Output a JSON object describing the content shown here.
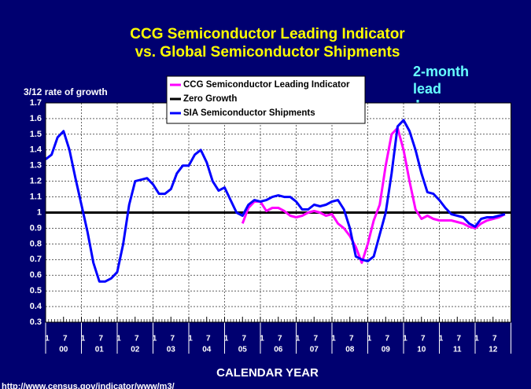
{
  "chart_data": {
    "type": "line",
    "title": [
      "CCG Semiconductor Leading Indicator",
      "vs. Global Semiconductor Shipments"
    ],
    "y_label": "3/12 rate of growth",
    "x_label": "CALENDAR YEAR",
    "annotation": [
      "2-month",
      "lead"
    ],
    "source": "http://www.census.gov/indicator/www/m3/",
    "ylim": [
      0.3,
      1.7
    ],
    "yticks": [
      0.3,
      0.4,
      0.5,
      0.6,
      0.7,
      0.8,
      0.9,
      1,
      1.1,
      1.2,
      1.3,
      1.4,
      1.5,
      1.6,
      1.7
    ],
    "grid": true,
    "legend": "top-center",
    "xticks": [
      {
        "value": "00-01",
        "label": "1"
      },
      {
        "value": "00-07",
        "label": "7"
      },
      {
        "value": "01-01",
        "label": "1"
      },
      {
        "value": "01-07",
        "label": "7"
      },
      {
        "value": "02-01",
        "label": "1"
      },
      {
        "value": "02-07",
        "label": "7"
      },
      {
        "value": "03-01",
        "label": "1"
      },
      {
        "value": "03-07",
        "label": "7"
      },
      {
        "value": "04-01",
        "label": "1"
      },
      {
        "value": "04-07",
        "label": "7"
      },
      {
        "value": "05-01",
        "label": "1"
      },
      {
        "value": "05-07",
        "label": "7"
      },
      {
        "value": "06-01",
        "label": "1"
      },
      {
        "value": "06-07",
        "label": "7"
      },
      {
        "value": "07-01",
        "label": "1"
      },
      {
        "value": "07-07",
        "label": "7"
      },
      {
        "value": "08-01",
        "label": "1"
      },
      {
        "value": "08-07",
        "label": "7"
      },
      {
        "value": "09-01",
        "label": "1"
      },
      {
        "value": "09-07",
        "label": "7"
      },
      {
        "value": "10-01",
        "label": "1"
      },
      {
        "value": "10-07",
        "label": "7"
      },
      {
        "value": "11-01",
        "label": "1"
      },
      {
        "value": "11-07",
        "label": "7"
      },
      {
        "value": "12-01",
        "label": "1"
      },
      {
        "value": "12-07",
        "label": "7"
      }
    ],
    "year_labels": [
      "00",
      "01",
      "02",
      "03",
      "04",
      "05",
      "06",
      "07",
      "08",
      "09",
      "10",
      "11",
      "12"
    ],
    "reference_line": {
      "name": "Zero Growth",
      "value": 1,
      "color": "#000000"
    },
    "x": [
      "00-01",
      "00-03",
      "00-05",
      "00-07",
      "00-09",
      "00-11",
      "01-01",
      "01-03",
      "01-05",
      "01-07",
      "01-09",
      "01-11",
      "02-01",
      "02-03",
      "02-05",
      "02-07",
      "02-09",
      "02-11",
      "03-01",
      "03-03",
      "03-05",
      "03-07",
      "03-09",
      "03-11",
      "04-01",
      "04-03",
      "04-05",
      "04-07",
      "04-09",
      "04-11",
      "05-01",
      "05-03",
      "05-05",
      "05-07",
      "05-09",
      "05-11",
      "06-01",
      "06-03",
      "06-05",
      "06-07",
      "06-09",
      "06-11",
      "07-01",
      "07-03",
      "07-05",
      "07-07",
      "07-09",
      "07-11",
      "08-01",
      "08-03",
      "08-05",
      "08-07",
      "08-09",
      "08-11",
      "09-01",
      "09-03",
      "09-05",
      "09-07",
      "09-09",
      "09-11",
      "10-01",
      "10-03",
      "10-05",
      "10-07",
      "10-09",
      "10-11",
      "11-01",
      "11-03",
      "11-05",
      "11-07",
      "11-09",
      "11-11",
      "12-01",
      "12-03",
      "12-05",
      "12-07",
      "12-09",
      "12-11"
    ],
    "series": [
      {
        "name": "CCG Semiconductor Leading Indicator",
        "color": "#ff00ff",
        "values": [
          null,
          null,
          null,
          null,
          null,
          null,
          null,
          null,
          null,
          null,
          null,
          null,
          null,
          null,
          null,
          null,
          null,
          null,
          null,
          null,
          null,
          null,
          null,
          null,
          null,
          null,
          null,
          null,
          null,
          null,
          null,
          null,
          null,
          0.93,
          1.03,
          1.07,
          1.07,
          1.01,
          1.03,
          1.03,
          1.01,
          0.98,
          0.97,
          0.98,
          1.0,
          1.01,
          1.0,
          0.98,
          0.99,
          0.93,
          0.9,
          0.85,
          0.78,
          0.68,
          0.8,
          0.95,
          1.05,
          1.3,
          1.5,
          1.54,
          1.4,
          1.2,
          1.02,
          0.96,
          0.98,
          0.96,
          0.95,
          0.95,
          0.95,
          0.94,
          0.93,
          0.91,
          0.9,
          0.93,
          0.95,
          0.96,
          0.97,
          0.99
        ]
      },
      {
        "name": "SIA Semiconductor Shipments",
        "color": "#0000ff",
        "values": [
          1.34,
          1.37,
          1.48,
          1.52,
          1.4,
          1.22,
          1.05,
          0.88,
          0.68,
          0.56,
          0.56,
          0.58,
          0.62,
          0.8,
          1.05,
          1.2,
          1.21,
          1.22,
          1.18,
          1.12,
          1.12,
          1.15,
          1.25,
          1.3,
          1.3,
          1.37,
          1.4,
          1.32,
          1.2,
          1.14,
          1.16,
          1.08,
          1.0,
          0.98,
          1.05,
          1.08,
          1.07,
          1.08,
          1.1,
          1.11,
          1.1,
          1.1,
          1.07,
          1.02,
          1.02,
          1.05,
          1.04,
          1.05,
          1.07,
          1.08,
          1.02,
          0.9,
          0.72,
          0.7,
          0.69,
          0.72,
          0.86,
          1.0,
          1.25,
          1.55,
          1.59,
          1.52,
          1.4,
          1.25,
          1.13,
          1.12,
          1.08,
          1.03,
          0.99,
          0.98,
          0.97,
          0.93,
          0.91,
          0.96,
          0.97,
          0.97,
          0.98,
          0.99
        ]
      }
    ]
  }
}
